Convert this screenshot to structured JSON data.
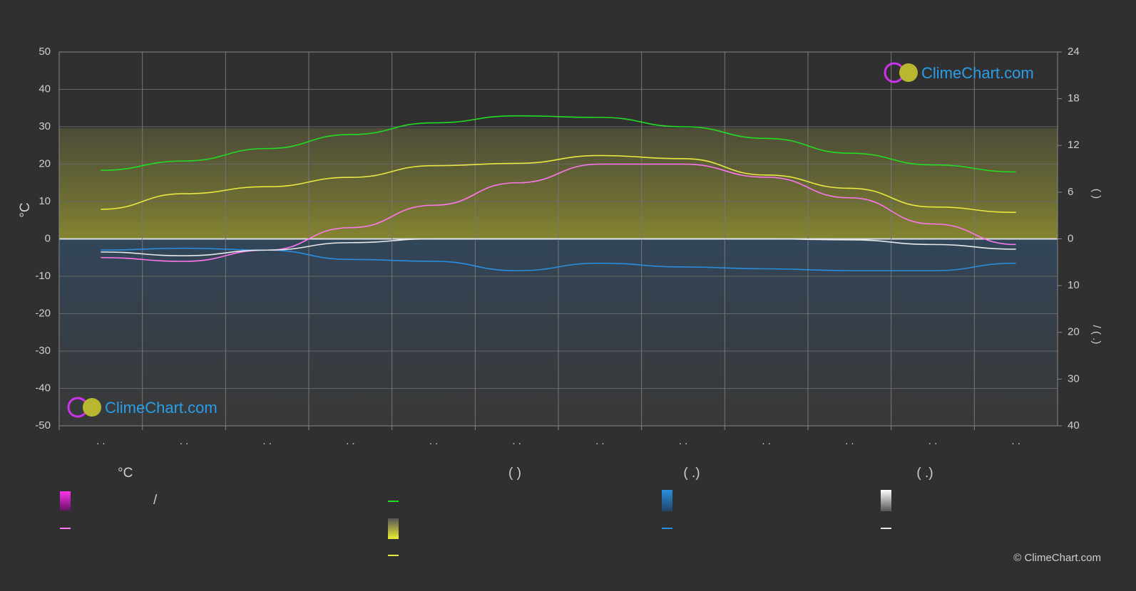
{
  "chart_data": {
    "type": "line",
    "categories": [
      ". .",
      ". .",
      ". .",
      ". .",
      ". .",
      ". .",
      ". .",
      ". .",
      ". .",
      ". .",
      ". .",
      ". ."
    ],
    "y_label": "°C",
    "ylim": [
      -50,
      50
    ],
    "yticks": [
      -50,
      -40,
      -30,
      -20,
      -10,
      0,
      10,
      20,
      30,
      40,
      50
    ],
    "y2lim": [
      0,
      24
    ],
    "y2ticks": [
      0,
      6,
      12,
      18,
      24
    ],
    "y2_label": "(        )",
    "y3lim": [
      0,
      40
    ],
    "y3ticks": [
      0,
      10,
      20,
      30,
      40
    ],
    "y3_label": "/       (  .)",
    "grid": true,
    "series": [
      {
        "color": "#22dd22",
        "axis": "y2",
        "values": [
          8.8,
          10.0,
          11.6,
          13.4,
          14.9,
          15.8,
          15.6,
          14.4,
          12.9,
          11.0,
          9.5,
          8.6
        ]
      },
      {
        "color": "#e8e840",
        "axis": "y2",
        "values": [
          3.8,
          5.8,
          6.7,
          7.9,
          9.4,
          9.7,
          10.7,
          10.3,
          8.2,
          6.5,
          4.1,
          3.4
        ]
      },
      {
        "color": "#ff77ee",
        "axis": "y",
        "values": [
          -5,
          -6,
          -3,
          3,
          9,
          15,
          20,
          20,
          16.5,
          11,
          4,
          -1.5
        ]
      },
      {
        "color": "#2a8ee0",
        "axis": "y3",
        "values": [
          2.4,
          2.0,
          2.4,
          4.4,
          4.8,
          6.8,
          5.2,
          6.0,
          6.4,
          6.8,
          6.8,
          5.2
        ]
      },
      {
        "color": "#e8e8e8",
        "axis": "y3",
        "values": [
          2.8,
          3.6,
          2.4,
          0.8,
          0,
          0,
          0,
          0,
          0,
          0.2,
          1.2,
          2.2
        ]
      }
    ],
    "legend": {
      "col1_title": "°C",
      "col1_sep": "/",
      "col2_title": "(          )",
      "col3_title": "(   .)",
      "col4_title": "(   .)"
    },
    "logo": "ClimeChart.com",
    "copyright": "© ClimeChart.com"
  }
}
